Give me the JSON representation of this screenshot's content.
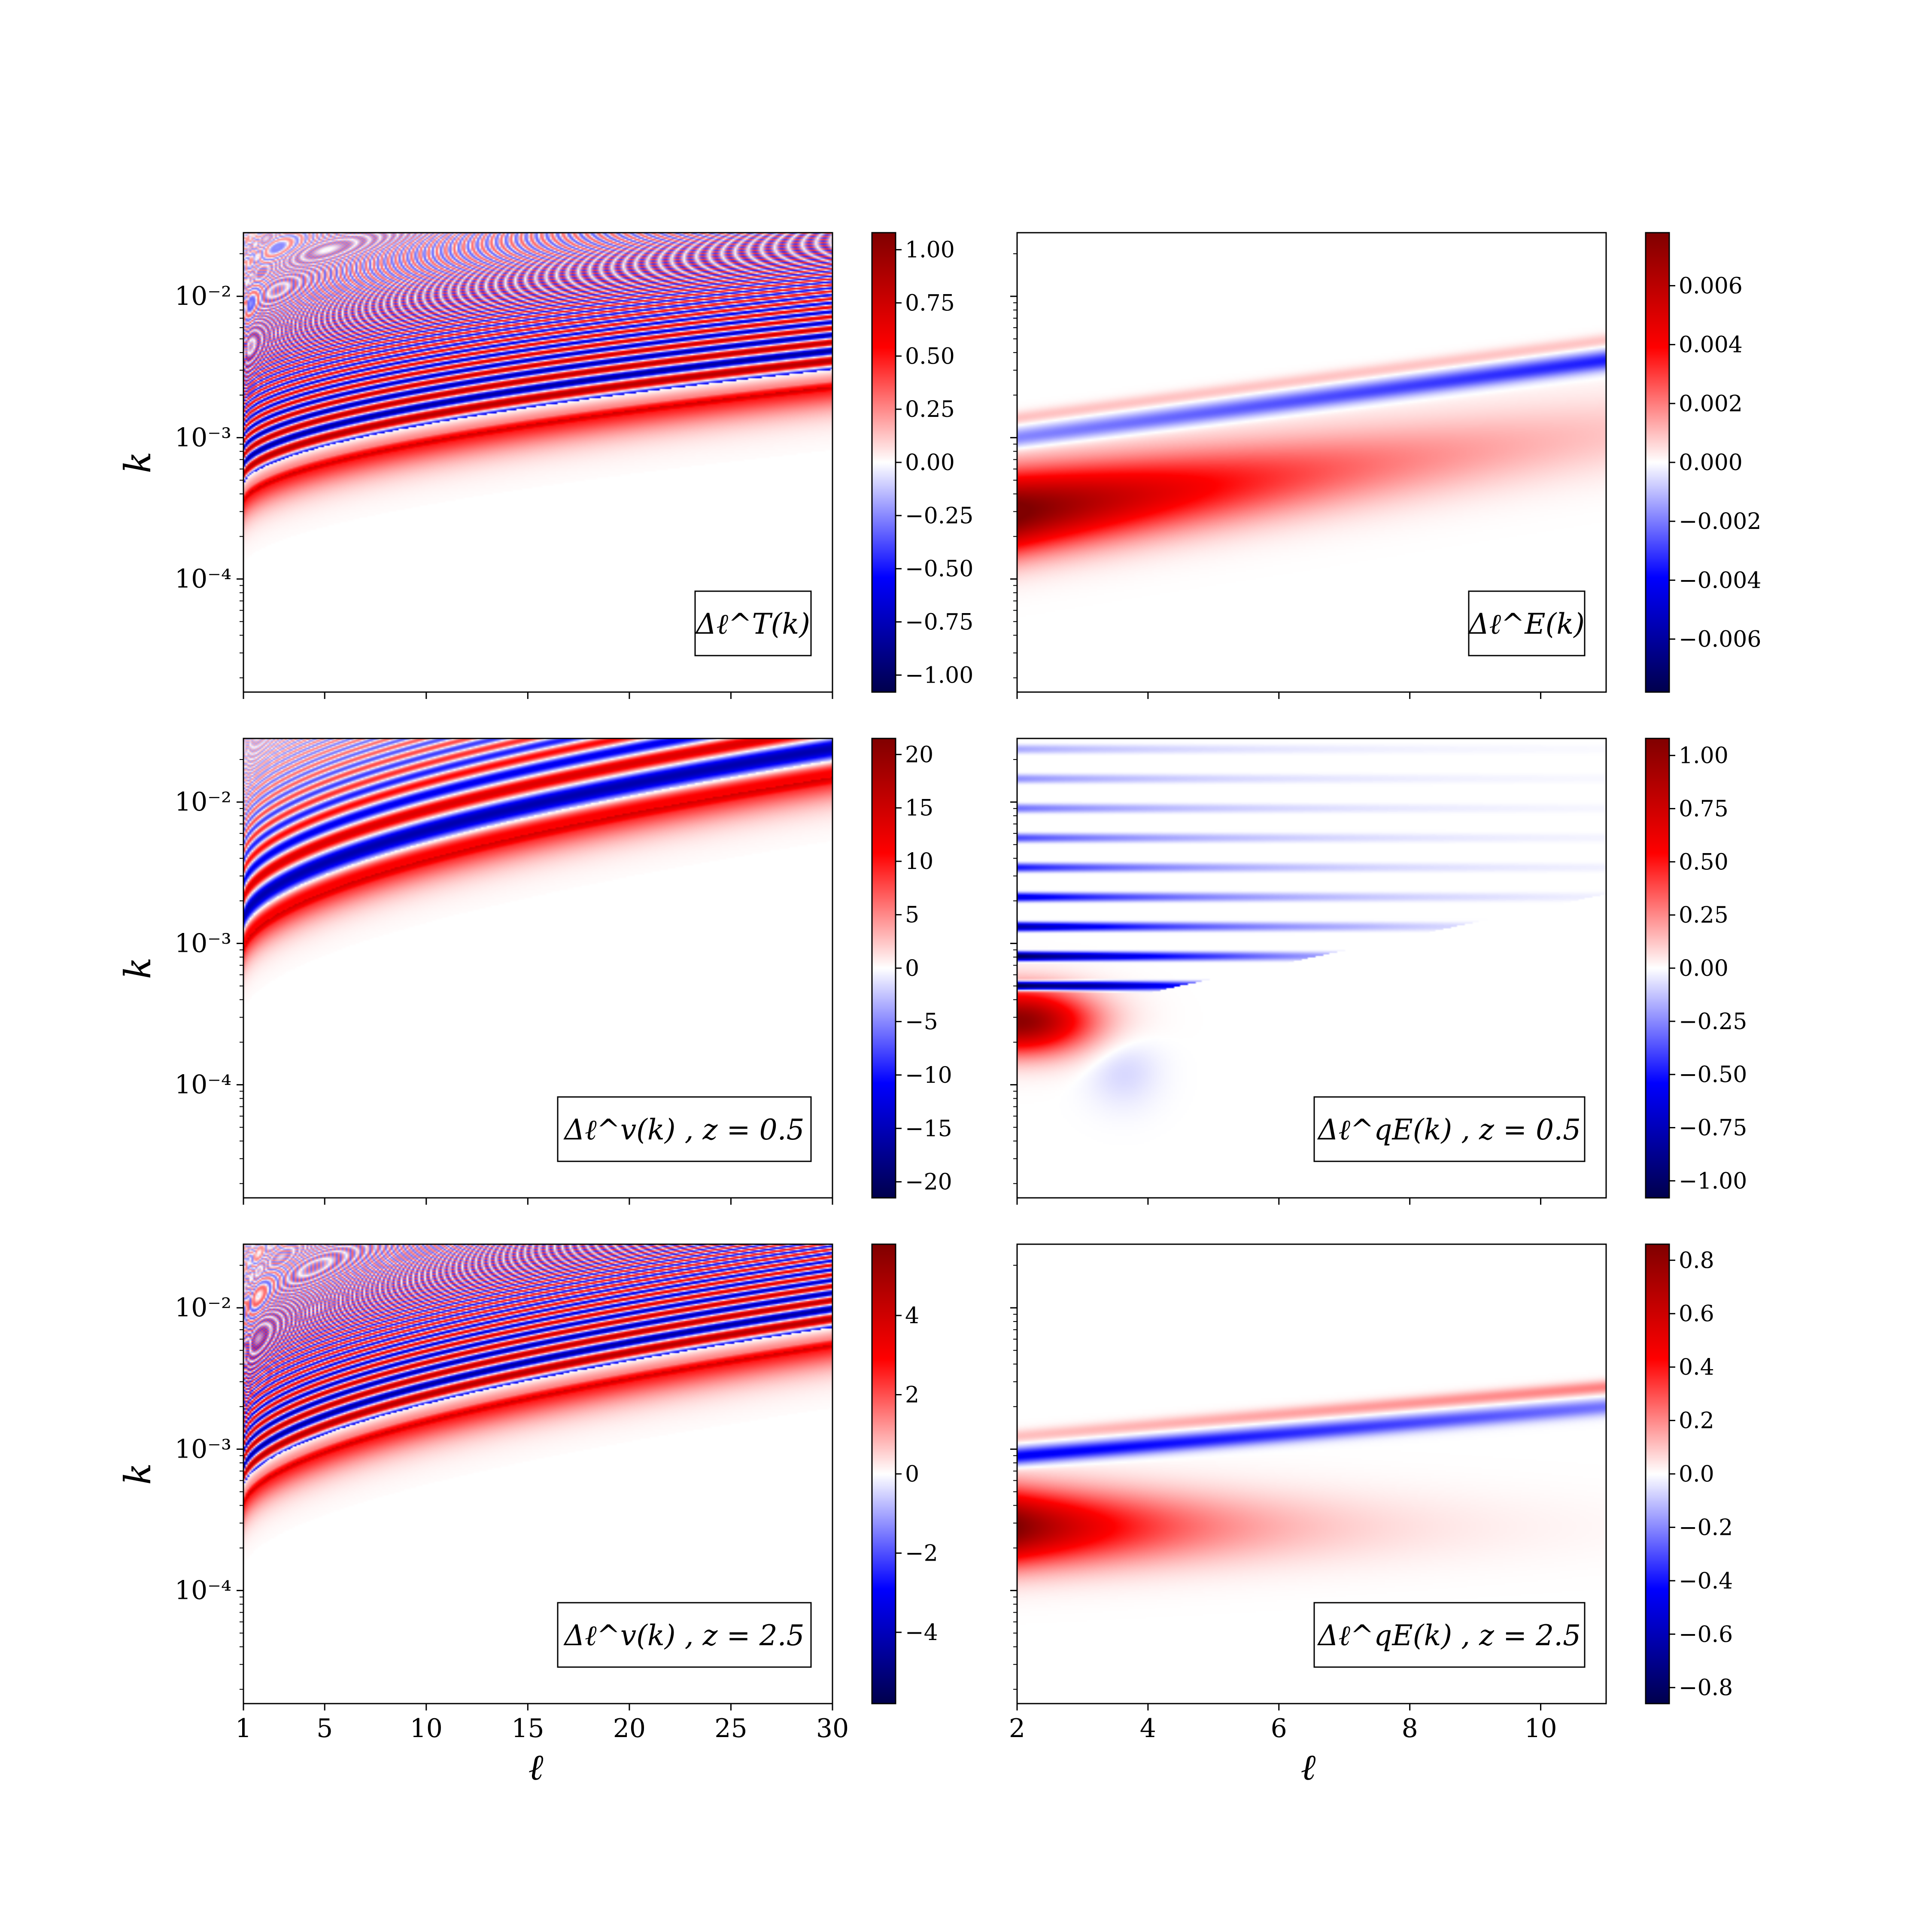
{
  "figure": {
    "colormap": "seismic"
  },
  "chart_data": [
    {
      "type": "heatmap",
      "panel": "row1-left",
      "legend": "Δℓ^T(k)",
      "xlabel": "",
      "ylabel": "k",
      "xlim": [
        1,
        30
      ],
      "ylim_log10": [
        -4.8,
        -1.55
      ],
      "yscale": "log",
      "xticks": [
        1,
        5,
        10,
        15,
        20,
        25,
        30
      ],
      "yticks": [
        {
          "label": "10⁻²",
          "log10": -2
        },
        {
          "label": "10⁻³",
          "log10": -3
        },
        {
          "label": "10⁻⁴",
          "log10": -4
        }
      ],
      "colorbar": {
        "range": [
          -1.08,
          1.08
        ],
        "ticks": [
          "1.00",
          "0.75",
          "0.50",
          "0.25",
          "0.00",
          "−0.25",
          "−0.50",
          "−0.75",
          "−1.00"
        ],
        "tick_values": [
          1,
          0.75,
          0.5,
          0.25,
          0,
          -0.25,
          -0.5,
          -0.75,
          -1
        ]
      },
      "pattern": {
        "kind": "oscillating",
        "onset_k_low": 0.00035,
        "onset_k_high": 0.0023,
        "dense_stripes": true
      }
    },
    {
      "type": "heatmap",
      "panel": "row1-right",
      "legend": "Δℓ^E(k)",
      "xlabel": "",
      "ylabel": "",
      "xlim": [
        2,
        11
      ],
      "ylim_log10": [
        -4.8,
        -1.55
      ],
      "yscale": "log",
      "xticks": [
        2,
        4,
        6,
        8,
        10
      ],
      "colorbar": {
        "range": [
          -0.0078,
          0.0078
        ],
        "ticks": [
          "0.006",
          "0.004",
          "0.002",
          "0.000",
          "−0.002",
          "−0.004",
          "−0.006"
        ],
        "tick_values": [
          0.006,
          0.004,
          0.002,
          0,
          -0.002,
          -0.004,
          -0.006
        ]
      },
      "pattern": {
        "kind": "blob",
        "peak_k": 0.0003,
        "peak_l": 2
      }
    },
    {
      "type": "heatmap",
      "panel": "row2-left",
      "legend": "Δℓ^v(k) , z = 0.5",
      "xlabel": "",
      "ylabel": "k",
      "xlim": [
        1,
        30
      ],
      "ylim_log10": [
        -4.8,
        -1.55
      ],
      "yscale": "log",
      "xticks": [
        1,
        5,
        10,
        15,
        20,
        25,
        30
      ],
      "yticks": [
        {
          "label": "10⁻²",
          "log10": -2
        },
        {
          "label": "10⁻³",
          "log10": -3
        },
        {
          "label": "10⁻⁴",
          "log10": -4
        }
      ],
      "colorbar": {
        "range": [
          -21.5,
          21.5
        ],
        "ticks": [
          "20",
          "15",
          "10",
          "5",
          "0",
          "−5",
          "−10",
          "−15",
          "−20"
        ],
        "tick_values": [
          20,
          15,
          10,
          5,
          0,
          -5,
          -10,
          -15,
          -20
        ]
      },
      "pattern": {
        "kind": "oscillating",
        "onset_k_low": 0.0009,
        "onset_k_high": 0.015,
        "dense_stripes": false
      }
    },
    {
      "type": "heatmap",
      "panel": "row2-right",
      "legend": "Δℓ^qE(k) , z = 0.5",
      "xlabel": "",
      "ylabel": "",
      "xlim": [
        2,
        11
      ],
      "ylim_log10": [
        -4.8,
        -1.55
      ],
      "yscale": "log",
      "xticks": [
        2,
        4,
        6,
        8,
        10
      ],
      "colorbar": {
        "range": [
          -1.08,
          1.08
        ],
        "ticks": [
          "1.00",
          "0.75",
          "0.50",
          "0.25",
          "0.00",
          "−0.25",
          "−0.50",
          "−0.75",
          "−1.00"
        ],
        "tick_values": [
          1,
          0.75,
          0.5,
          0.25,
          0,
          -0.25,
          -0.5,
          -0.75,
          -1
        ]
      },
      "pattern": {
        "kind": "bands",
        "peak_k": 0.0003,
        "peak_l": 2
      }
    },
    {
      "type": "heatmap",
      "panel": "row3-left",
      "legend": "Δℓ^v(k) , z = 2.5",
      "xlabel": "ℓ",
      "ylabel": "k",
      "xlim": [
        1,
        30
      ],
      "ylim_log10": [
        -4.8,
        -1.55
      ],
      "yscale": "log",
      "xticks": [
        1,
        5,
        10,
        15,
        20,
        25,
        30
      ],
      "xticklabels": [
        "1",
        "5",
        "10",
        "15",
        "20",
        "25",
        "30"
      ],
      "yticks": [
        {
          "label": "10⁻²",
          "log10": -2
        },
        {
          "label": "10⁻³",
          "log10": -3
        },
        {
          "label": "10⁻⁴",
          "log10": -4
        }
      ],
      "colorbar": {
        "range": [
          -5.8,
          5.8
        ],
        "ticks": [
          "4",
          "2",
          "0",
          "−2",
          "−4"
        ],
        "tick_values": [
          4,
          2,
          0,
          -2,
          -4
        ]
      },
      "pattern": {
        "kind": "oscillating",
        "onset_k_low": 0.0004,
        "onset_k_high": 0.0055,
        "dense_stripes": true
      }
    },
    {
      "type": "heatmap",
      "panel": "row3-right",
      "legend": "Δℓ^qE(k) , z = 2.5",
      "xlabel": "ℓ",
      "ylabel": "",
      "xlim": [
        2,
        11
      ],
      "ylim_log10": [
        -4.8,
        -1.55
      ],
      "yscale": "log",
      "xticks": [
        2,
        4,
        6,
        8,
        10
      ],
      "xticklabels": [
        "2",
        "4",
        "6",
        "8",
        "10"
      ],
      "colorbar": {
        "range": [
          -0.86,
          0.86
        ],
        "ticks": [
          "0.8",
          "0.6",
          "0.4",
          "0.2",
          "0.0",
          "−0.2",
          "−0.4",
          "−0.6",
          "−0.8"
        ],
        "tick_values": [
          0.8,
          0.6,
          0.4,
          0.2,
          0,
          -0.2,
          -0.4,
          -0.6,
          -0.8
        ]
      },
      "pattern": {
        "kind": "blob-bands",
        "peak_k": 0.0003,
        "peak_l": 2
      }
    }
  ]
}
